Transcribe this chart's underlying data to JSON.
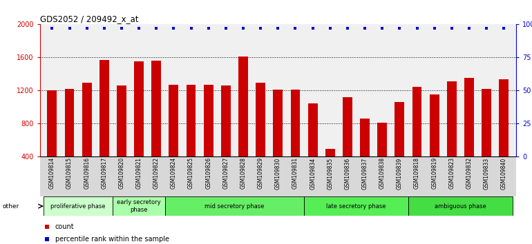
{
  "title": "GDS2052 / 209492_x_at",
  "samples": [
    "GSM109814",
    "GSM109815",
    "GSM109816",
    "GSM109817",
    "GSM109820",
    "GSM109821",
    "GSM109822",
    "GSM109824",
    "GSM109825",
    "GSM109826",
    "GSM109827",
    "GSM109828",
    "GSM109829",
    "GSM109830",
    "GSM109831",
    "GSM109834",
    "GSM109835",
    "GSM109836",
    "GSM109837",
    "GSM109838",
    "GSM109839",
    "GSM109818",
    "GSM109819",
    "GSM109823",
    "GSM109832",
    "GSM109833",
    "GSM109840"
  ],
  "bar_values": [
    1200,
    1220,
    1290,
    1570,
    1260,
    1550,
    1560,
    1270,
    1270,
    1270,
    1260,
    1610,
    1290,
    1210,
    1210,
    1040,
    490,
    1120,
    860,
    810,
    1060,
    1240,
    1150,
    1310,
    1350,
    1220,
    1330
  ],
  "percentile_values": [
    97,
    97,
    97,
    97,
    97,
    97,
    97,
    97,
    97,
    97,
    97,
    97,
    97,
    97,
    97,
    97,
    97,
    97,
    97,
    97,
    97,
    97,
    97,
    97,
    97,
    97,
    97
  ],
  "bar_color": "#cc0000",
  "dot_color": "#0000cc",
  "phases": [
    {
      "label": "proliferative phase",
      "start": 0,
      "end": 4,
      "color": "#ccffcc"
    },
    {
      "label": "early secretory\nphase",
      "start": 4,
      "end": 7,
      "color": "#aaffaa"
    },
    {
      "label": "mid secretory phase",
      "start": 7,
      "end": 15,
      "color": "#66ee66"
    },
    {
      "label": "late secretory phase",
      "start": 15,
      "end": 21,
      "color": "#55ee55"
    },
    {
      "label": "ambiguous phase",
      "start": 21,
      "end": 27,
      "color": "#44dd44"
    }
  ],
  "ylim_left": [
    400,
    2000
  ],
  "ylim_right": [
    0,
    100
  ],
  "yticks_left": [
    400,
    800,
    1200,
    1600,
    2000
  ],
  "yticks_right": [
    0,
    25,
    50,
    75,
    100
  ],
  "ytick_labels_right": [
    "0",
    "25",
    "50",
    "75",
    "100%"
  ],
  "gridlines": [
    800,
    1200,
    1600
  ],
  "left_axis_color": "#cc0000",
  "right_axis_color": "#0000cc",
  "plot_bg_color": "#f0f0f0",
  "xtick_bg_color": "#d8d8d8"
}
